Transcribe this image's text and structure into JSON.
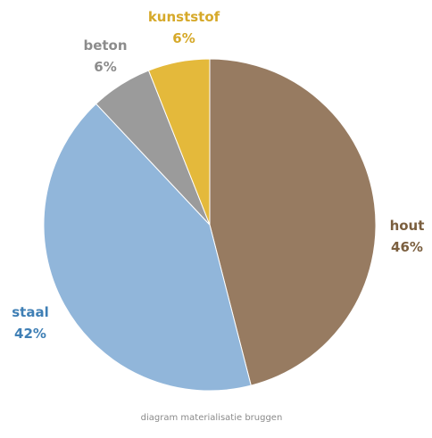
{
  "chart_data": {
    "type": "pie",
    "caption": "diagram materialisatie bruggen",
    "start_angle_deg": 0,
    "direction": "clockwise",
    "slices": [
      {
        "name": "hout",
        "value": 46,
        "label": "46%",
        "color": "#977b61",
        "label_color": "#7b5f3f"
      },
      {
        "name": "staal",
        "value": 42,
        "label": "42%",
        "color": "#91b6da",
        "label_color": "#3f7fb5"
      },
      {
        "name": "beton",
        "value": 6,
        "label": "6%",
        "color": "#9b9b9b",
        "label_color": "#8c8c8c"
      },
      {
        "name": "kunststof",
        "value": 6,
        "label": "6%",
        "color": "#e4b93b",
        "label_color": "#d6a92a"
      }
    ]
  }
}
